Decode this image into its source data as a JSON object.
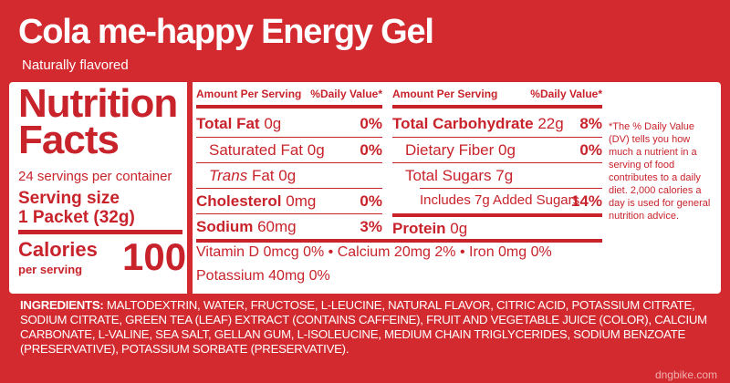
{
  "header": {
    "title": "Cola me-happy Energy Gel",
    "subtitle": "Naturally flavored"
  },
  "facts": {
    "heading_line1": "Nutrition",
    "heading_line2": "Facts",
    "servings": "24 servings per container",
    "serving_size_label": "Serving size",
    "serving_size_value": "1 Packet (32g)",
    "calories_label": "Calories",
    "calories_per": "per serving",
    "calories_value": "100"
  },
  "left_table": {
    "header_amount": "Amount Per Serving",
    "header_dv": "%Daily Value*",
    "rows": [
      {
        "name": "Total Fat",
        "amount": "0g",
        "dv": "0%"
      },
      {
        "name": "Saturated Fat",
        "amount": "0g",
        "dv": "0%"
      },
      {
        "name_italic": "Trans",
        "name": "Fat",
        "amount": "0g",
        "dv": ""
      },
      {
        "name": "Cholesterol",
        "amount": "0mg",
        "dv": "0%"
      },
      {
        "name": "Sodium",
        "amount": "60mg",
        "dv": "3%"
      }
    ]
  },
  "right_table": {
    "header_amount": "Amount Per Serving",
    "header_dv": "%Daily Value*",
    "rows": [
      {
        "name": "Total Carbohydrate",
        "amount": "22g",
        "dv": "8%"
      },
      {
        "name": "Dietary Fiber",
        "amount": "0g",
        "dv": "0%"
      },
      {
        "name": "Total Sugars",
        "amount": "7g",
        "dv": ""
      },
      {
        "name": "Includes 7g Added Sugars",
        "amount": "",
        "dv": "14%"
      },
      {
        "name": "Protein",
        "amount": "0g",
        "dv": ""
      }
    ]
  },
  "footnote": "*The % Daily Value (DV) tells you how much a nutrient in a serving of food contributes to a daily diet. 2,000 calories a day is used for general nutrition advice.",
  "minerals": {
    "line1": "Vitamin D  0mcg  0%  •  Calcium  20mg 2%  •  Iron  0mg  0%",
    "line2": "Potassium  40mg  0%"
  },
  "ingredients": {
    "label": "INGREDIENTS:",
    "text": " MALTODEXTRIN, WATER, FRUCTOSE, L-LEUCINE, NATURAL FLAVOR, CITRIC ACID, POTASSIUM CITRATE, SODIUM CITRATE, GREEN TEA (LEAF) EXTRACT (CONTAINS CAFFEINE), FRUIT AND VEGETABLE JUICE (COLOR), CALCIUM CARBONATE, L-VALINE, SEA SALT, GELLAN GUM, L-ISOLEUCINE, MEDIUM CHAIN TRIGLYCERIDES, SODIUM BENZOATE (PRESERVATIVE), POTASSIUM SORBATE (PRESERVATIVE)."
  },
  "watermark": "dngbike.com",
  "colors": {
    "brand_red": "#d32a30",
    "text_red": "#c8232b",
    "panel": "#ffffff"
  }
}
